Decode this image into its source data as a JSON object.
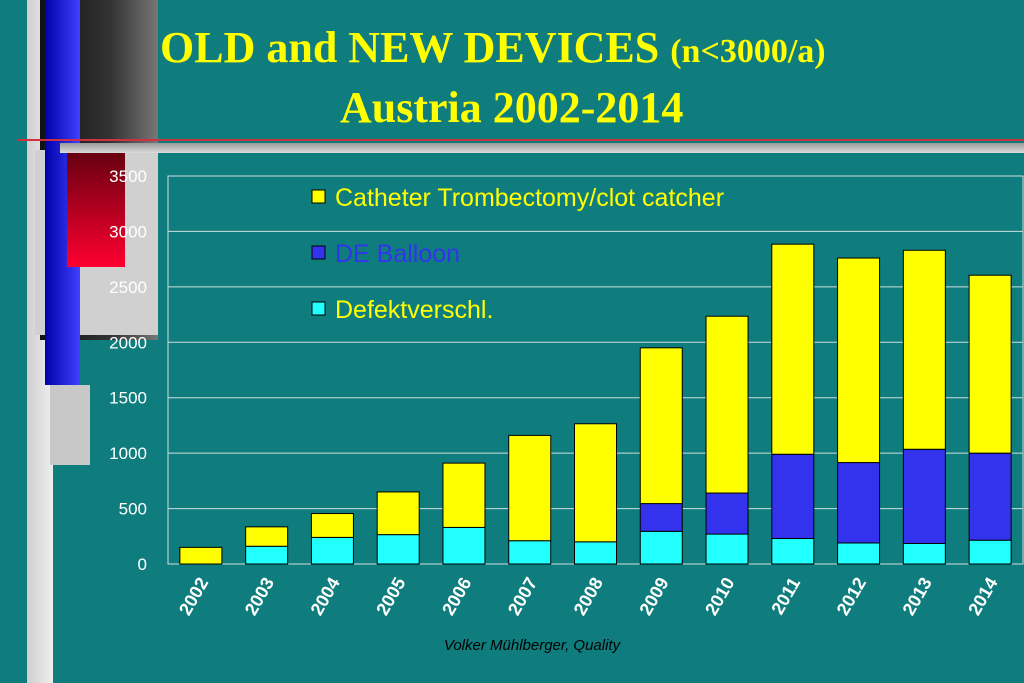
{
  "slide": {
    "title_line1": "OLD  and  NEW  DEVICES",
    "title_suffix": "(n<3000/a)",
    "title_line2": "Austria 2002-2014",
    "footer": "Volker Mühlberger, Quality"
  },
  "colors": {
    "background": "#0f7d7d",
    "title": "#ffff00",
    "catheter": "#ffff00",
    "balloon": "#3333ee",
    "defekt": "#22ffff"
  },
  "chart_data": {
    "type": "bar",
    "stacked": true,
    "categories": [
      "2002",
      "2003",
      "2004",
      "2005",
      "2006",
      "2007",
      "2008",
      "2009",
      "2010",
      "2011",
      "2012",
      "2013",
      "2014"
    ],
    "series": [
      {
        "name": "Defektverschl.",
        "color": "#22ffff",
        "values": [
          0,
          160,
          240,
          265,
          330,
          210,
          200,
          295,
          270,
          230,
          190,
          185,
          215
        ]
      },
      {
        "name": "DE Balloon",
        "color": "#3333ee",
        "values": [
          0,
          0,
          0,
          0,
          0,
          0,
          0,
          250,
          370,
          760,
          725,
          850,
          785
        ]
      },
      {
        "name": "Catheter Trombectomy/clot catcher",
        "color": "#ffff00",
        "values": [
          150,
          175,
          215,
          385,
          580,
          950,
          1065,
          1405,
          1595,
          1895,
          1845,
          1795,
          1605
        ]
      }
    ],
    "legend": [
      "Catheter Trombectomy/clot catcher",
      "DE Balloon",
      "Defektverschl."
    ],
    "legend_colors": [
      "#ffff00",
      "#3333ee",
      "#22ffff"
    ],
    "y_ticks": [
      "0",
      "500",
      "1000",
      "1500",
      "2000",
      "2500",
      "3000",
      "3500"
    ],
    "ylim": [
      0,
      3500
    ],
    "grid": true,
    "legend_position": "top-left inside"
  }
}
